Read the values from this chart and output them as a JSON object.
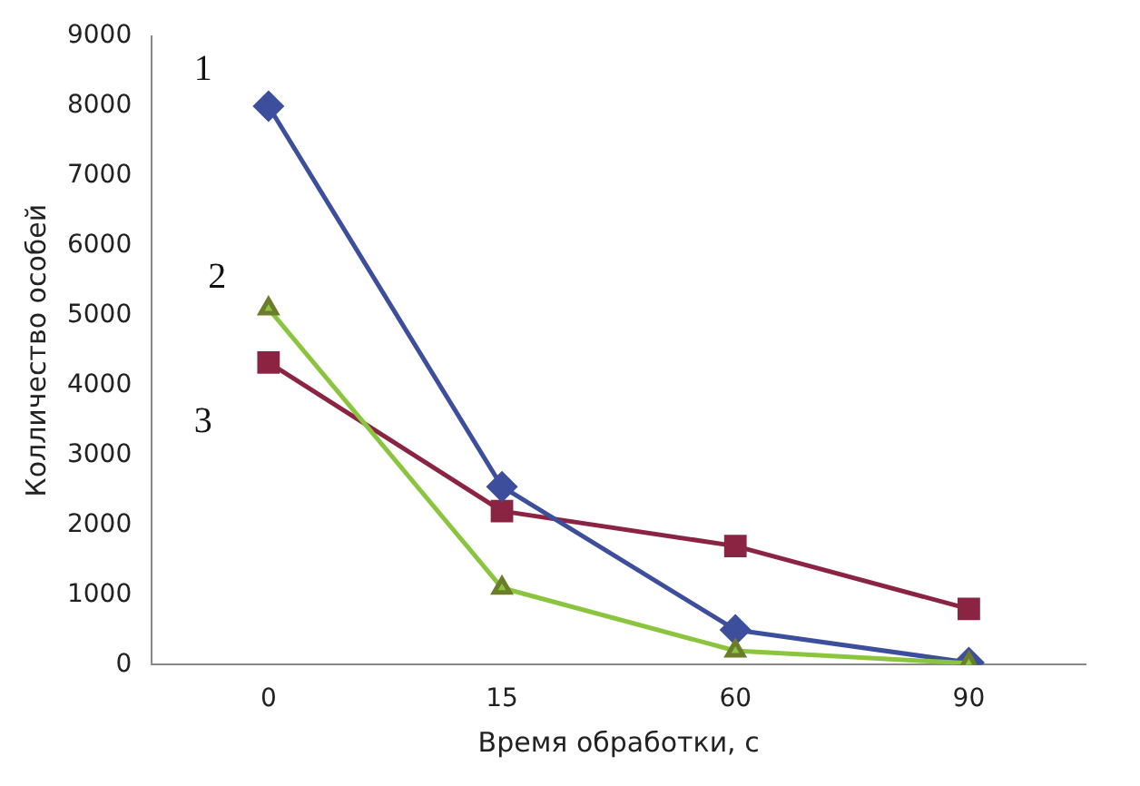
{
  "chart_data": {
    "type": "line",
    "xlabel": "Время обработки, с",
    "ylabel": "Колличество особей",
    "categories": [
      "0",
      "15",
      "60",
      "90"
    ],
    "series": [
      {
        "color": "#8bc53f",
        "marker": "triangle",
        "values": [
          5100,
          1100,
          200,
          20
        ]
      },
      {
        "color": "#3d4e9c",
        "marker": "diamond",
        "values": [
          8000,
          2550,
          500,
          30
        ]
      },
      {
        "color": "#8a2442",
        "marker": "square",
        "values": [
          4330,
          2200,
          1700,
          800
        ]
      }
    ],
    "ylim": [
      0,
      9000
    ],
    "yticks": [
      0,
      1000,
      2000,
      3000,
      4000,
      5000,
      6000,
      7000,
      8000,
      9000
    ],
    "grid": false,
    "legend": false,
    "annotations": [
      "1",
      "2",
      "3"
    ]
  }
}
